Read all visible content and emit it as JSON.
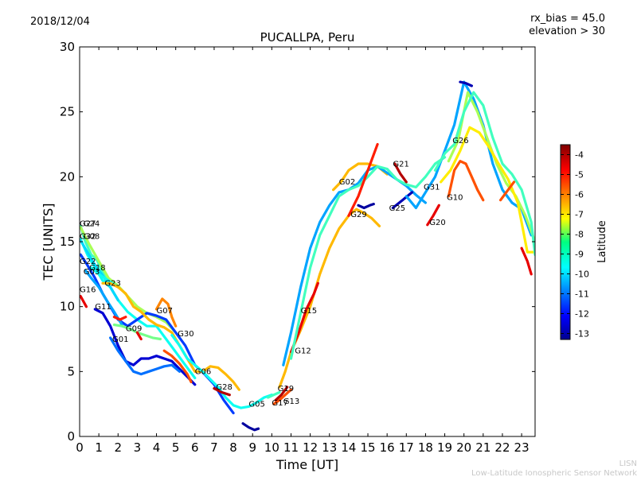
{
  "header": {
    "date": "2018/12/04",
    "title": "PUCALLPA, Peru",
    "rx_bias": "rx_bias = 45.0",
    "elevation": "elevation > 30"
  },
  "footer": {
    "org_short": "LISN",
    "org_long": "Low-Latitude Ionospheric Sensor Network"
  },
  "colorbar": {
    "label": "Latitude",
    "min": -13.3,
    "max": -3.5,
    "ticks": [
      "-4",
      "-5",
      "-6",
      "-7",
      "-8",
      "-9",
      "-10",
      "-11",
      "-12",
      "-13"
    ]
  },
  "chart_data": {
    "type": "line",
    "xlabel": "Time [UT]",
    "ylabel": "TEC [UNITS]",
    "xlim": [
      0,
      23.7
    ],
    "ylim": [
      0,
      30
    ],
    "xticks": [
      "0",
      "1",
      "2",
      "3",
      "4",
      "5",
      "6",
      "7",
      "8",
      "9",
      "10",
      "11",
      "12",
      "13",
      "14",
      "15",
      "16",
      "17",
      "18",
      "19",
      "20",
      "21",
      "22",
      "23"
    ],
    "yticks": [
      "0",
      "5",
      "10",
      "15",
      "20",
      "25",
      "30"
    ],
    "series": [
      {
        "name": "G27",
        "lat": -9.0,
        "x": [
          0.05,
          0.3,
          0.6,
          0.9,
          1.2,
          1.5
        ],
        "y": [
          16.2,
          15.0,
          14.0,
          13.6,
          12.6,
          11.8
        ]
      },
      {
        "name": "G24",
        "lat": -8.0,
        "x": [
          0.05,
          0.5,
          1.0,
          1.5,
          2.0,
          2.5,
          3.0,
          3.5,
          4.0,
          4.5,
          5.0
        ],
        "y": [
          16.1,
          14.8,
          13.5,
          12.2,
          11.6,
          10.8,
          10.0,
          9.5,
          9.2,
          8.8,
          8.0
        ]
      },
      {
        "name": "G32",
        "lat": -9.5,
        "x": [
          0.05,
          0.4,
          0.8,
          1.2,
          1.6,
          2.0,
          2.5,
          3.0,
          3.5,
          4.0,
          4.5,
          5.0,
          5.5,
          6.0
        ],
        "y": [
          15.2,
          14.0,
          13.0,
          12.0,
          11.5,
          10.5,
          9.6,
          9.0,
          8.5,
          8.5,
          7.5,
          6.5,
          5.5,
          4.5
        ]
      },
      {
        "name": "G08",
        "lat": -10.0,
        "x": [
          0.05,
          0.4,
          0.8,
          1.2,
          1.6,
          2.0
        ],
        "y": [
          15.1,
          14.2,
          13.2,
          12.4,
          11.5,
          10.5
        ]
      },
      {
        "name": "G22",
        "lat": -11.5,
        "x": [
          0.05,
          0.4,
          0.8,
          1.2,
          1.6,
          2.0,
          2.5,
          3.0,
          3.5,
          4.0,
          4.5,
          5.0,
          5.5,
          6.0,
          6.5,
          7.0,
          7.5,
          8.0
        ],
        "y": [
          14.0,
          13.2,
          12.2,
          11.0,
          10.0,
          9.0,
          8.5,
          9.0,
          9.5,
          9.3,
          9.0,
          8.0,
          7.0,
          5.5,
          4.8,
          4.0,
          2.8,
          1.8
        ]
      },
      {
        "name": "G18",
        "lat": -9.5,
        "x": [
          0.6,
          1.0,
          1.5,
          2.0
        ],
        "y": [
          13.0,
          12.5,
          12.0,
          11.5
        ]
      },
      {
        "name": "G03",
        "lat": -10.5,
        "x": [
          0.3,
          0.6,
          1.0,
          1.4,
          1.8,
          2.2
        ],
        "y": [
          12.8,
          12.2,
          11.5,
          10.5,
          9.6,
          8.6
        ]
      },
      {
        "name": "G23",
        "lat": -6.5,
        "x": [
          1.2,
          1.6,
          2.0,
          2.4,
          2.8,
          3.2,
          3.6,
          4.0,
          4.4,
          4.8,
          5.2,
          5.6,
          6.0,
          6.4,
          6.8,
          7.2,
          7.6,
          8.0,
          8.3
        ],
        "y": [
          11.8,
          11.8,
          11.5,
          11.0,
          10.0,
          9.6,
          9.0,
          8.6,
          8.4,
          8.0,
          7.0,
          6.0,
          5.0,
          5.0,
          5.4,
          5.3,
          4.8,
          4.2,
          3.6
        ]
      },
      {
        "name": "G16",
        "lat": -4.5,
        "x": [
          0.05,
          0.2,
          0.35
        ],
        "y": [
          10.8,
          10.4,
          10.0
        ]
      },
      {
        "name": "G11",
        "lat": -12.5,
        "x": [
          0.8,
          1.2,
          1.6,
          2.0,
          2.4,
          2.8,
          3.2,
          3.6,
          4.0,
          4.4,
          4.8,
          5.2,
          5.6,
          6.0
        ],
        "y": [
          9.8,
          9.5,
          8.5,
          7.0,
          5.8,
          5.5,
          6.0,
          6.0,
          6.2,
          6.0,
          5.8,
          5.2,
          4.6,
          4.0
        ]
      },
      {
        "name": "G09",
        "lat": -8.5,
        "x": [
          1.8,
          2.2,
          2.6,
          3.0,
          3.4,
          3.8,
          4.2
        ],
        "y": [
          8.6,
          8.5,
          8.3,
          8.0,
          7.8,
          7.6,
          7.5
        ]
      },
      {
        "name": "G01",
        "lat": -11.0,
        "x": [
          1.6,
          2.0,
          2.4,
          2.8,
          3.2,
          3.6,
          4.0,
          4.4,
          4.8,
          5.2
        ],
        "y": [
          7.6,
          6.6,
          5.8,
          5.0,
          4.8,
          5.0,
          5.2,
          5.4,
          5.5,
          5.0
        ]
      },
      {
        "name": "G07",
        "lat": -6.0,
        "x": [
          4.0,
          4.3,
          4.6,
          4.8,
          5.0
        ],
        "y": [
          9.8,
          10.6,
          10.2,
          9.2,
          8.5
        ]
      },
      {
        "name": "G30",
        "lat": -9.5,
        "x": [
          4.8,
          5.2,
          5.6,
          6.0,
          6.4,
          6.8,
          7.2,
          7.6,
          8.0,
          8.4,
          8.8,
          9.2,
          9.6,
          10.0
        ],
        "y": [
          7.8,
          7.0,
          6.0,
          5.5,
          5.0,
          4.4,
          3.8,
          3.0,
          2.4,
          2.2,
          2.3,
          2.6,
          3.0,
          3.2
        ]
      },
      {
        "name": "G06",
        "lat": -5.5,
        "x": [
          4.4,
          4.8,
          5.2,
          5.6,
          5.8
        ],
        "y": [
          6.6,
          6.2,
          5.6,
          4.8,
          4.2
        ]
      },
      {
        "name": "G28",
        "lat": -4.0,
        "x": [
          7.0,
          7.4,
          7.8
        ],
        "y": [
          3.7,
          3.4,
          3.2
        ]
      },
      {
        "name": "G05",
        "lat": -13.0,
        "x": [
          8.5,
          8.8,
          9.1,
          9.3
        ],
        "y": [
          1.0,
          0.7,
          0.5,
          0.6
        ]
      },
      {
        "name": "G19",
        "lat": -9.0,
        "x": [
          9.8,
          10.1,
          10.4
        ],
        "y": [
          3.0,
          3.2,
          3.4
        ]
      },
      {
        "name": "G13",
        "lat": -5.5,
        "x": [
          10.1,
          10.4,
          10.7,
          11.0
        ],
        "y": [
          2.5,
          2.8,
          3.2,
          3.6
        ]
      },
      {
        "name": "G17",
        "lat": -4.0,
        "x": [
          10.2,
          10.5,
          10.8
        ],
        "y": [
          2.8,
          3.2,
          3.8
        ]
      },
      {
        "name": "G12",
        "lat": -6.5,
        "x": [
          10.4,
          10.7,
          11.0,
          11.5,
          12.0,
          12.5,
          13.0,
          13.5,
          14.0,
          14.4,
          14.8,
          15.2,
          15.6
        ],
        "y": [
          3.8,
          5.0,
          6.5,
          8.2,
          10.0,
          12.5,
          14.5,
          16.0,
          17.0,
          17.5,
          17.2,
          16.8,
          16.2
        ]
      },
      {
        "name": "G15",
        "lat": -4.5,
        "x": [
          11.0,
          11.4,
          11.8,
          12.2,
          12.4
        ],
        "y": [
          6.5,
          8.0,
          9.8,
          11.0,
          11.8
        ]
      },
      {
        "name": "G02",
        "lat": -6.5,
        "x": [
          13.2,
          13.6,
          14.0,
          14.5,
          15.0,
          15.5,
          16.0
        ],
        "y": [
          19.0,
          19.6,
          20.5,
          21.0,
          21.0,
          20.8,
          20.2
        ]
      },
      {
        "name": "G29",
        "lat": -10.5,
        "x": [
          10.6,
          11.0,
          11.5,
          12.0,
          12.5,
          13.0,
          13.5,
          14.0,
          14.5,
          15.0,
          15.5,
          16.0,
          16.5,
          17.0,
          17.5,
          18.0
        ],
        "y": [
          5.5,
          8.0,
          11.5,
          14.5,
          16.5,
          17.8,
          18.8,
          19.0,
          19.5,
          20.5,
          20.8,
          20.3,
          19.8,
          19.3,
          18.6,
          18.0
        ]
      },
      {
        "name": "G10",
        "lat": -9.0,
        "x": [
          11.0,
          11.5,
          12.0,
          12.5,
          13.0,
          13.5,
          14.0,
          14.5,
          15.0,
          15.5,
          16.0,
          16.5,
          17.0,
          17.5,
          18.0,
          18.5,
          19.0
        ],
        "y": [
          6.0,
          9.5,
          13.0,
          15.5,
          17.0,
          18.5,
          19.0,
          19.3,
          20.0,
          20.8,
          20.6,
          19.8,
          19.4,
          19.2,
          20.0,
          21.0,
          21.5
        ]
      },
      {
        "name": "G29b",
        "lat": -13.0,
        "x": [
          14.5,
          14.8,
          15.1,
          15.3
        ],
        "y": [
          17.8,
          17.6,
          17.8,
          17.9
        ]
      },
      {
        "name": "G29c",
        "lat": -5.0,
        "x": [
          14.0,
          14.5,
          15.0,
          15.5
        ],
        "y": [
          17.0,
          18.5,
          20.5,
          22.5
        ]
      },
      {
        "name": "G21",
        "lat": -4.0,
        "x": [
          16.4,
          16.7,
          17.0
        ],
        "y": [
          21.0,
          20.2,
          19.6
        ]
      },
      {
        "name": "G25",
        "lat": -12.8,
        "x": [
          16.3,
          16.8,
          17.3
        ],
        "y": [
          17.6,
          18.2,
          18.8
        ]
      },
      {
        "name": "G31",
        "lat": -10.5,
        "x": [
          17.0,
          17.5,
          18.0,
          18.5,
          19.0,
          19.5,
          20.0,
          20.5,
          21.0,
          21.5,
          22.0,
          22.5,
          23.0,
          23.5
        ],
        "y": [
          18.5,
          17.6,
          18.8,
          20.0,
          22.0,
          24.0,
          27.3,
          26.0,
          24.0,
          21.0,
          19.0,
          18.0,
          17.5,
          15.5
        ]
      },
      {
        "name": "G31b",
        "lat": -12.8,
        "x": [
          19.8,
          20.1,
          20.4
        ],
        "y": [
          27.3,
          27.2,
          27.0
        ]
      },
      {
        "name": "G20",
        "lat": -4.5,
        "x": [
          18.1,
          18.4,
          18.7
        ],
        "y": [
          16.3,
          17.0,
          17.8
        ]
      },
      {
        "name": "G10b",
        "lat": -5.5,
        "x": [
          19.2,
          19.5,
          19.8,
          20.1,
          20.4,
          20.7,
          21.0
        ],
        "y": [
          18.5,
          20.5,
          21.2,
          21.0,
          20.0,
          19.0,
          18.2
        ]
      },
      {
        "name": "G26",
        "lat": -8.0,
        "x": [
          19.2,
          19.7,
          20.2,
          20.7,
          21.2,
          21.7,
          22.2,
          22.7,
          23.2,
          23.7
        ],
        "y": [
          21.2,
          22.8,
          26.5,
          25.0,
          23.0,
          21.0,
          19.5,
          18.5,
          17.0,
          15.0
        ]
      },
      {
        "name": "G26b",
        "lat": -7.0,
        "x": [
          18.8,
          19.3,
          19.8,
          20.3,
          20.8,
          21.3,
          21.8,
          22.3,
          22.8,
          23.3,
          23.7
        ],
        "y": [
          19.6,
          20.5,
          22.0,
          23.8,
          23.4,
          22.3,
          21.0,
          19.8,
          18.0,
          14.2,
          14.2
        ]
      },
      {
        "name": "G26c",
        "lat": -9.0,
        "x": [
          18.5,
          19.0,
          19.5,
          20.0,
          20.5,
          21.0,
          21.5,
          22.0,
          22.5,
          23.0,
          23.5,
          23.7
        ],
        "y": [
          20.5,
          21.8,
          22.5,
          25.0,
          26.5,
          25.5,
          23.0,
          21.0,
          20.2,
          19.0,
          16.5,
          14.0
        ]
      },
      {
        "name": "G31c",
        "lat": -5.5,
        "x": [
          21.9,
          22.3,
          22.6
        ],
        "y": [
          18.2,
          19.0,
          19.6
        ]
      },
      {
        "name": "G31d",
        "lat": -4.5,
        "x": [
          23.0,
          23.3,
          23.5
        ],
        "y": [
          14.5,
          13.5,
          12.5
        ]
      },
      {
        "name": "G11b",
        "lat": -5.0,
        "x": [
          1.8,
          2.1,
          2.4
        ],
        "y": [
          9.2,
          9.0,
          9.2
        ]
      },
      {
        "name": "G09b",
        "lat": -4.5,
        "x": [
          3.0,
          3.2
        ],
        "y": [
          8.0,
          7.5
        ]
      }
    ],
    "labels": [
      {
        "text": "G27",
        "x": 0.0,
        "y": 16.2
      },
      {
        "text": "G24",
        "x": 0.2,
        "y": 16.2
      },
      {
        "text": "G32",
        "x": 0.0,
        "y": 15.2
      },
      {
        "text": "G08",
        "x": 0.2,
        "y": 15.2
      },
      {
        "text": "G22",
        "x": 0.0,
        "y": 13.3
      },
      {
        "text": "G18",
        "x": 0.5,
        "y": 12.8
      },
      {
        "text": "G03",
        "x": 0.2,
        "y": 12.5
      },
      {
        "text": "G23",
        "x": 1.3,
        "y": 11.6
      },
      {
        "text": "G16",
        "x": 0.0,
        "y": 11.1
      },
      {
        "text": "G11",
        "x": 0.8,
        "y": 9.8
      },
      {
        "text": "G09",
        "x": 2.4,
        "y": 8.1
      },
      {
        "text": "G01",
        "x": 1.7,
        "y": 7.3
      },
      {
        "text": "G07",
        "x": 4.0,
        "y": 9.5
      },
      {
        "text": "G30",
        "x": 5.1,
        "y": 7.7
      },
      {
        "text": "G06",
        "x": 6.0,
        "y": 4.8
      },
      {
        "text": "G28",
        "x": 7.1,
        "y": 3.6
      },
      {
        "text": "G05",
        "x": 8.8,
        "y": 2.3
      },
      {
        "text": "G19",
        "x": 10.3,
        "y": 3.5
      },
      {
        "text": "G17",
        "x": 10.0,
        "y": 2.4
      },
      {
        "text": "G13",
        "x": 10.6,
        "y": 2.5
      },
      {
        "text": "G12",
        "x": 11.2,
        "y": 6.4
      },
      {
        "text": "G15",
        "x": 11.5,
        "y": 9.5
      },
      {
        "text": "G02",
        "x": 13.5,
        "y": 19.4
      },
      {
        "text": "G29",
        "x": 14.1,
        "y": 16.9
      },
      {
        "text": "G25",
        "x": 16.1,
        "y": 17.4
      },
      {
        "text": "G21",
        "x": 16.3,
        "y": 20.8
      },
      {
        "text": "G31",
        "x": 17.9,
        "y": 19.0
      },
      {
        "text": "G20",
        "x": 18.2,
        "y": 16.3
      },
      {
        "text": "G10",
        "x": 19.1,
        "y": 18.2
      },
      {
        "text": "G26",
        "x": 19.4,
        "y": 22.6
      }
    ]
  }
}
